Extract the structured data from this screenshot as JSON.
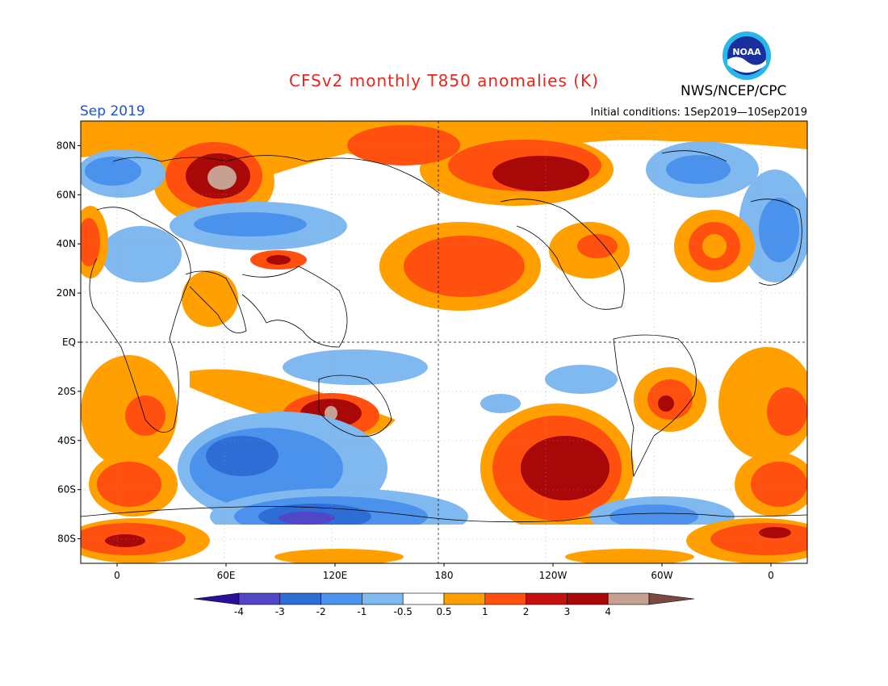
{
  "header": {
    "title": "CFSv2 monthly T850 anomalies (K)",
    "agency": "NWS/NCEP/CPC",
    "month": "Sep 2019",
    "initial_conditions": "Initial conditions: 1Sep2019—10Sep2019",
    "logo_text": "NOAA"
  },
  "colors": {
    "title": "#e8261c",
    "month": "#2052d8",
    "land_outline": "#000000",
    "levels": [
      "#2b0f9a",
      "#5145c8",
      "#2e6dd6",
      "#4b92ec",
      "#80b8f0",
      "#ffffff",
      "#ffa000",
      "#ff5010",
      "#c51010",
      "#a80808",
      "#c6a090",
      "#7a4a40"
    ]
  },
  "map": {
    "latitude_labels": [
      "80N",
      "60N",
      "40N",
      "20N",
      "EQ",
      "20S",
      "40S",
      "60S",
      "80S"
    ],
    "longitude_labels": [
      "0",
      "60E",
      "120E",
      "180",
      "120W",
      "60W",
      "0"
    ],
    "latitude_ticks": [
      80,
      60,
      40,
      20,
      0,
      -20,
      -40,
      -60,
      -80
    ],
    "longitude_ticks": [
      0,
      60,
      120,
      180,
      240,
      300,
      360
    ],
    "lon_range": [
      -20,
      380
    ],
    "lat_range": [
      -90,
      90
    ]
  },
  "colorbar": {
    "labels": [
      "-4",
      "-3",
      "-2",
      "-1",
      "-0.5",
      "0.5",
      "1",
      "2",
      "3",
      "4"
    ],
    "units": "K"
  }
}
